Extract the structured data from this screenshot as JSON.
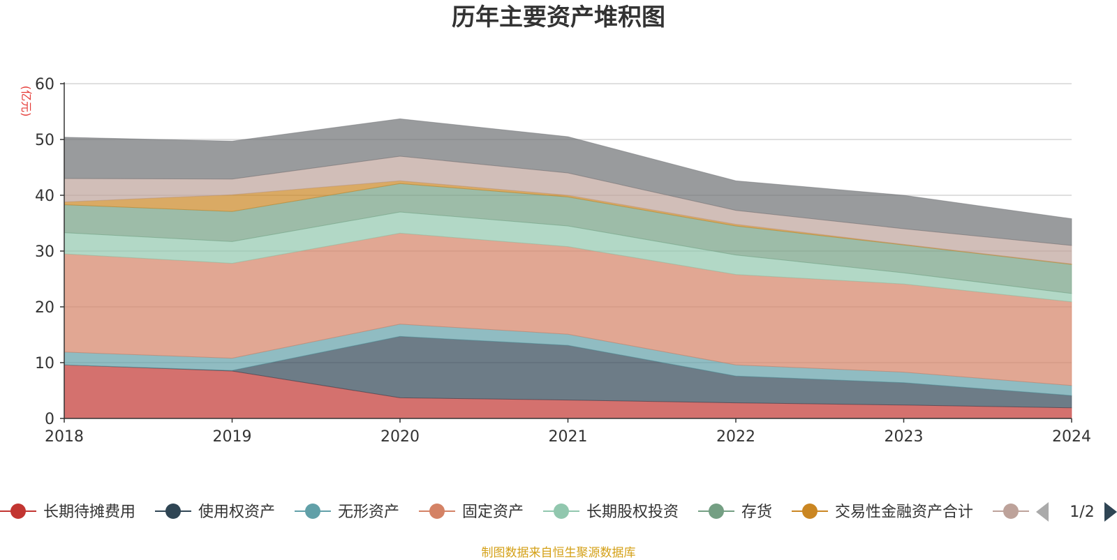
{
  "chart_data": {
    "type": "area",
    "title": "历年主要资产堆积图",
    "ylabel": "(亿元)",
    "stacked": true,
    "x": [
      "2018",
      "2019",
      "2020",
      "2021",
      "2022",
      "2023",
      "2024"
    ],
    "ylim": [
      0,
      60
    ],
    "yticks": [
      0,
      10,
      20,
      30,
      40,
      50,
      60
    ],
    "grid": true,
    "legend_position": "bottom",
    "legend_page": "1/2",
    "series": [
      {
        "name": "长期待摊费用",
        "color": "#c23531",
        "values": [
          9.6,
          8.5,
          3.7,
          3.3,
          2.8,
          2.4,
          1.9
        ]
      },
      {
        "name": "使用权资产",
        "color": "#2f4554",
        "values": [
          0.0,
          0.1,
          11.0,
          9.8,
          4.8,
          4.0,
          2.2
        ]
      },
      {
        "name": "无形资产",
        "color": "#61a0a8",
        "values": [
          2.3,
          2.2,
          2.2,
          2.0,
          2.0,
          1.9,
          1.8
        ]
      },
      {
        "name": "固定资产",
        "color": "#d48265",
        "values": [
          17.6,
          17.0,
          16.3,
          15.7,
          16.2,
          15.8,
          15.0
        ]
      },
      {
        "name": "长期股权投资",
        "color": "#91c7ae",
        "values": [
          3.8,
          3.9,
          3.8,
          3.7,
          3.5,
          2.0,
          1.5
        ]
      },
      {
        "name": "存货",
        "color": "#749f83",
        "values": [
          5.0,
          5.4,
          5.1,
          5.2,
          5.2,
          5.0,
          5.2
        ]
      },
      {
        "name": "交易性金融资产合计",
        "color": "#ca8622",
        "values": [
          0.5,
          3.0,
          0.5,
          0.3,
          0.3,
          0.1,
          0.1
        ]
      },
      {
        "name": "",
        "color": "#bda29a",
        "values": [
          4.2,
          2.8,
          4.4,
          4.0,
          2.5,
          2.8,
          3.3
        ]
      },
      {
        "name": "",
        "color": "#6e7074",
        "values": [
          7.4,
          6.8,
          6.7,
          6.5,
          5.3,
          6.0,
          4.8
        ]
      }
    ]
  },
  "footer": {
    "source": "制图数据来自恒生聚源数据库"
  }
}
